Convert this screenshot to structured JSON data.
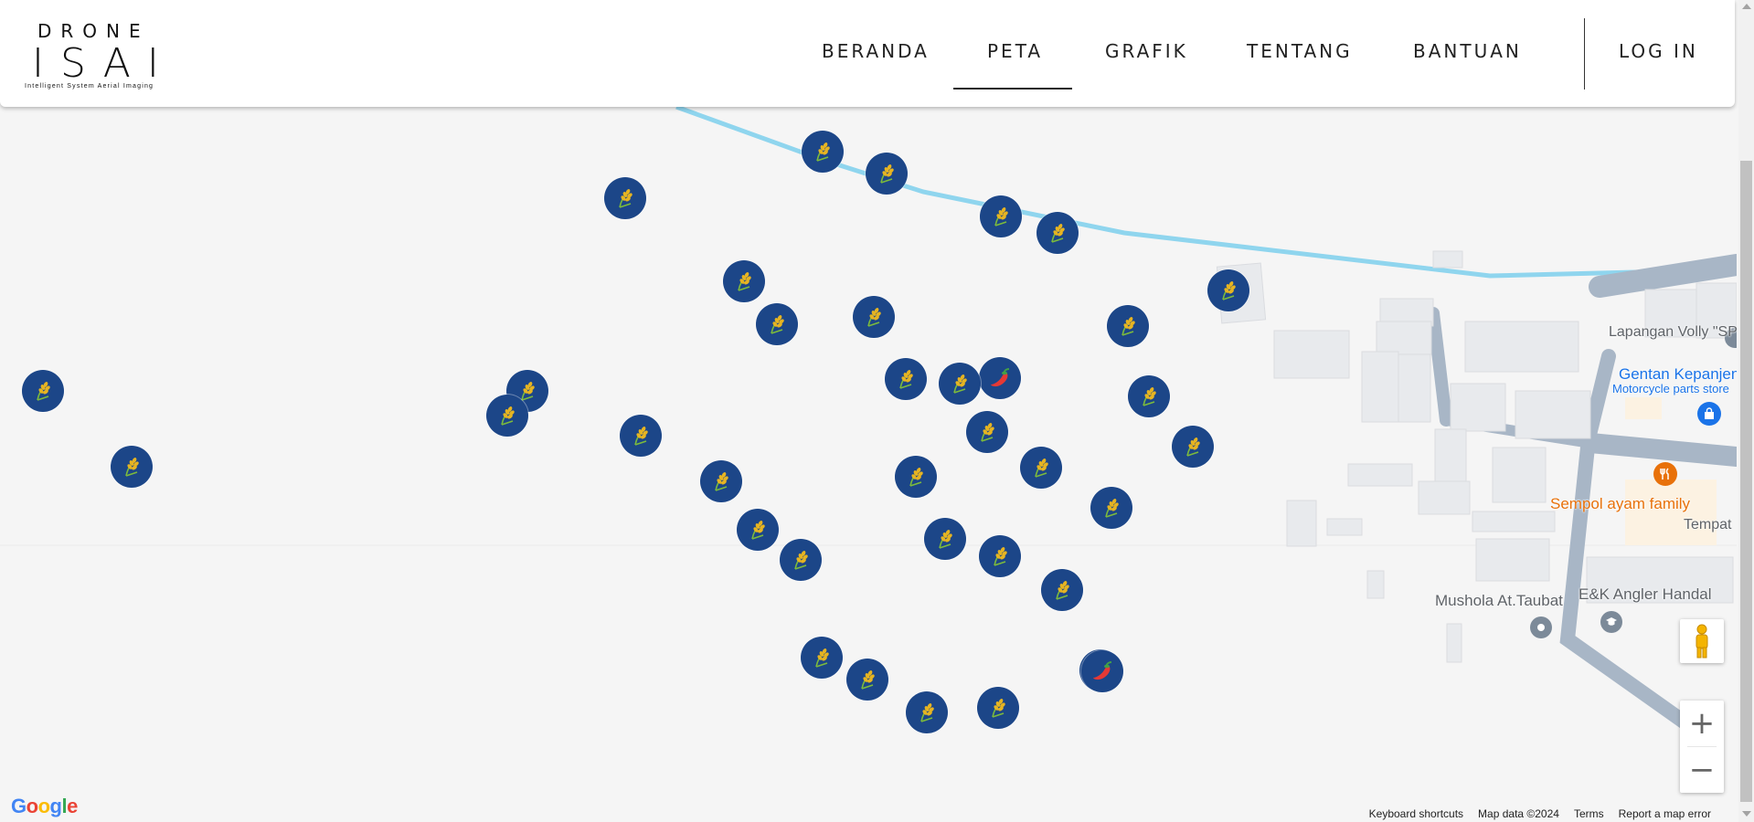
{
  "header": {
    "logo": {
      "top_text": "DRONE",
      "main_text": "ISAI",
      "subtitle": "Intelligent System Aerial Imaging"
    },
    "nav": [
      {
        "label": "BERANDA",
        "active": false
      },
      {
        "label": "PETA",
        "active": true
      },
      {
        "label": "GRAFIK",
        "active": false
      },
      {
        "label": "TENTANG",
        "active": false
      },
      {
        "label": "BANTUAN",
        "active": false
      }
    ],
    "login_label": "LOG IN"
  },
  "map": {
    "pois": {
      "lapangan": "Lapangan Volly \"SPICAS\"",
      "gentan": "Gentan Kepanjen",
      "gentan_sub": "Motorcycle parts store",
      "sempol": "Sempol ayam family",
      "tempat": "Tempat",
      "mushola": "Mushola At.Taubat",
      "angler": "E&K Angler Handal"
    },
    "marker_types": {
      "rice": "rice-plant-icon",
      "chili": "chili-pepper-icon"
    },
    "marker_color": "#1c4688",
    "markers": [
      "rice",
      "rice",
      "rice",
      "rice",
      "rice",
      "rice",
      "rice",
      "rice",
      "rice",
      "rice",
      "rice",
      "rice",
      "chili",
      "rice",
      "rice",
      "chili",
      "rice",
      "rice",
      "rice",
      "rice",
      "rice",
      "rice",
      "rice",
      "rice",
      "rice",
      "rice",
      "rice",
      "rice",
      "rice",
      "rice",
      "rice",
      "rice",
      "rice",
      "rice",
      "rice",
      "chili"
    ]
  },
  "controls": {
    "zoom_in": "+",
    "zoom_out": "−"
  },
  "footer": {
    "google": "Google",
    "keyboard": "Keyboard shortcuts",
    "map_data": "Map data ©2024",
    "terms": "Terms",
    "report": "Report a map error"
  }
}
